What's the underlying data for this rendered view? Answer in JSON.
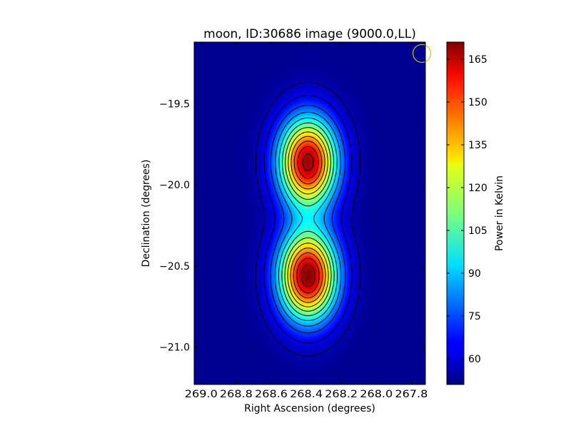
{
  "chart_data": {
    "type": "heatmap",
    "title": "moon, ID:30686 image (9000.0,LL)",
    "xlabel": "Right Ascension (degrees)",
    "ylabel": "Declination (degrees)",
    "colorbar_label": "Power in Kelvin",
    "colormap": "jet",
    "xlim": [
      269.04,
      267.72
    ],
    "ylim": [
      -21.23,
      -19.12
    ],
    "x_ticks": [
      269.0,
      268.8,
      268.6,
      268.4,
      268.2,
      268.0,
      267.8
    ],
    "x_tick_labels": [
      "269.0",
      "268.8",
      "268.6",
      "268.4",
      "268.2",
      "268.0",
      "267.8"
    ],
    "y_ticks": [
      -19.5,
      -20.0,
      -20.5,
      -21.0
    ],
    "y_tick_labels": [
      "−19.5",
      "−20.0",
      "−20.5",
      "−21.0"
    ],
    "colorbar_range": [
      51,
      171
    ],
    "colorbar_ticks": [
      60,
      75,
      90,
      105,
      120,
      135,
      150,
      165
    ],
    "colorbar_tick_labels": [
      "60",
      "75",
      "90",
      "105",
      "120",
      "135",
      "150",
      "165"
    ],
    "background_level": 53,
    "sources": [
      {
        "ra": 268.39,
        "dec": -19.86,
        "peak": 168,
        "sigma_ra": 0.115,
        "sigma_dec": 0.19
      },
      {
        "ra": 268.39,
        "dec": -20.56,
        "peak": 171,
        "sigma_ra": 0.115,
        "sigma_dec": 0.19
      }
    ],
    "contour_levels": [
      57,
      64,
      74,
      84,
      94,
      104,
      114,
      124,
      134,
      144,
      154,
      164
    ],
    "beam": {
      "ra": 267.74,
      "dec": -19.19,
      "radius_deg": 0.055,
      "color": "#cccc00"
    },
    "colorbar_position": "right"
  }
}
